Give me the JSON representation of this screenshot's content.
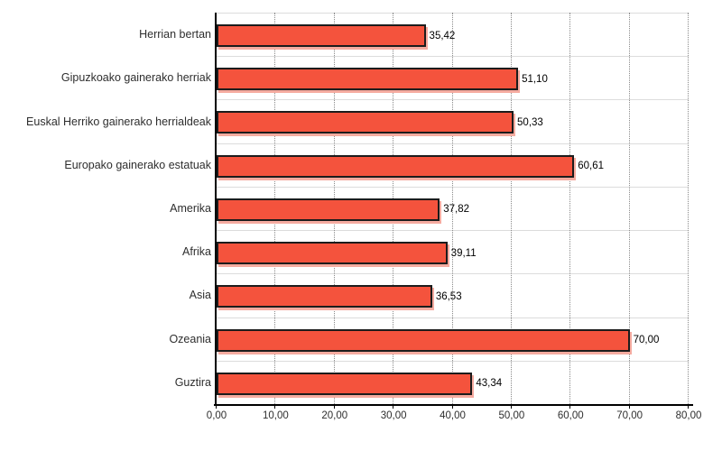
{
  "chart_data": {
    "type": "bar",
    "orientation": "horizontal",
    "title": "",
    "categories": [
      "Herrian bertan",
      "Gipuzkoako gainerako herriak",
      "Euskal Herriko gainerako herrialdeak",
      "Europako gainerako estatuak",
      "Amerika",
      "Afrika",
      "Asia",
      "Ozeania",
      "Guztira"
    ],
    "values": [
      35.42,
      51.1,
      50.33,
      60.61,
      37.82,
      39.11,
      36.53,
      70.0,
      43.34
    ],
    "value_labels": [
      "35,42",
      "51,10",
      "50,33",
      "60,61",
      "37,82",
      "39,11",
      "36,53",
      "70,00",
      "43,34"
    ],
    "xlim": [
      0,
      80
    ],
    "xtick_values": [
      0,
      10,
      20,
      30,
      40,
      50,
      60,
      70,
      80
    ],
    "xtick_labels": [
      "0,00",
      "10,00",
      "20,00",
      "30,00",
      "40,00",
      "50,00",
      "60,00",
      "70,00",
      "80,00"
    ],
    "grid": {
      "vertical": "dotted",
      "horizontal": "solid"
    },
    "legend": "none",
    "colors": {
      "bar_fill": "#f4533d",
      "bar_border": "#1c1c1c",
      "bar_shadow": "#f5aba0",
      "grid_vertical": "#8a8a8a",
      "grid_horizontal": "#dcdcdc",
      "axis": "#000000",
      "category_text": "#2e2e2e",
      "value_text": "#000000"
    }
  }
}
